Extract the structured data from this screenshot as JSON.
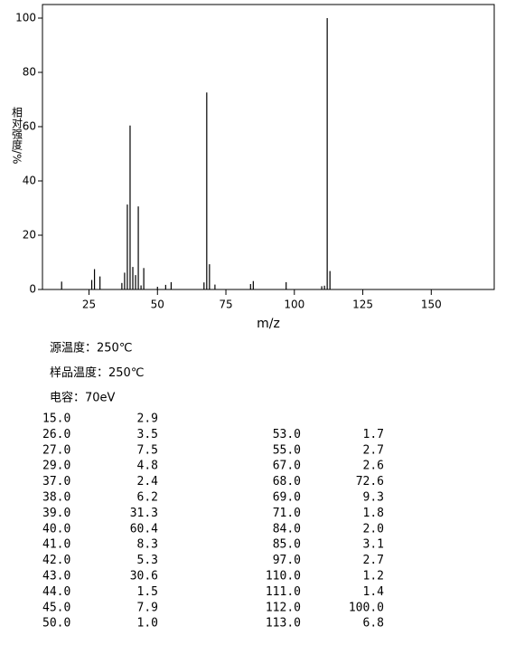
{
  "chart_data": {
    "type": "bar",
    "xlabel": "m/z",
    "ylabel": "相对强度/%",
    "x": [
      15,
      26,
      27,
      29,
      37,
      38,
      39,
      40,
      41,
      42,
      43,
      44,
      45,
      50,
      53,
      55,
      67,
      68,
      69,
      71,
      84,
      85,
      97,
      110,
      111,
      112,
      113
    ],
    "values": [
      2.9,
      3.5,
      7.5,
      4.8,
      2.4,
      6.2,
      31.3,
      60.4,
      8.3,
      5.3,
      30.6,
      1.5,
      7.9,
      1.0,
      1.7,
      2.7,
      2.6,
      72.6,
      9.3,
      1.8,
      2.0,
      3.1,
      2.7,
      1.2,
      1.4,
      100.0,
      6.8
    ],
    "color": "#000000",
    "xlim": [
      8,
      173
    ],
    "xticks": [
      25,
      50,
      75,
      100,
      125,
      150
    ],
    "ylim": [
      0,
      105
    ],
    "yticks": [
      0,
      20,
      40,
      60,
      80,
      100
    ]
  },
  "conditions": [
    "源温度：250℃",
    "样品温度：250℃",
    "电容：70eV"
  ],
  "table": {
    "left": [
      [
        "15.0",
        "2.9"
      ],
      [
        "26.0",
        "3.5"
      ],
      [
        "27.0",
        "7.5"
      ],
      [
        "29.0",
        "4.8"
      ],
      [
        "37.0",
        "2.4"
      ],
      [
        "38.0",
        "6.2"
      ],
      [
        "39.0",
        "31.3"
      ],
      [
        "40.0",
        "60.4"
      ],
      [
        "41.0",
        "8.3"
      ],
      [
        "42.0",
        "5.3"
      ],
      [
        "43.0",
        "30.6"
      ],
      [
        "44.0",
        "1.5"
      ],
      [
        "45.0",
        "7.9"
      ],
      [
        "50.0",
        "1.0"
      ]
    ],
    "right": [
      [
        "53.0",
        "1.7"
      ],
      [
        "55.0",
        "2.7"
      ],
      [
        "67.0",
        "2.6"
      ],
      [
        "68.0",
        "72.6"
      ],
      [
        "69.0",
        "9.3"
      ],
      [
        "71.0",
        "1.8"
      ],
      [
        "84.0",
        "2.0"
      ],
      [
        "85.0",
        "3.1"
      ],
      [
        "97.0",
        "2.7"
      ],
      [
        "110.0",
        "1.2"
      ],
      [
        "111.0",
        "1.4"
      ],
      [
        "112.0",
        "100.0"
      ],
      [
        "113.0",
        "6.8"
      ]
    ]
  }
}
